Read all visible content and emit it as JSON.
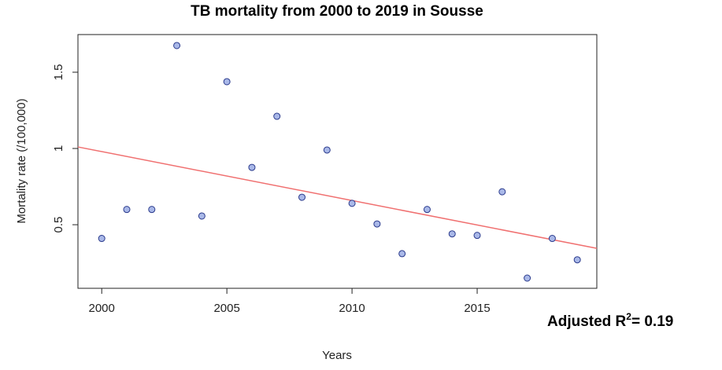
{
  "chart_data": {
    "type": "scatter",
    "title": "TB mortality from 2000 to 2019 in Sousse",
    "x_label": "Years",
    "y_label": "Mortality rate (/100,000)",
    "x": [
      2000,
      2001,
      2002,
      2003,
      2004,
      2005,
      2006,
      2007,
      2008,
      2009,
      2010,
      2011,
      2012,
      2013,
      2014,
      2015,
      2016,
      2017,
      2018,
      2019
    ],
    "series": [
      {
        "name": "Mortality rate",
        "color": "#a9b8e8",
        "edge_color": "#2a3a8c",
        "values": [
          0.41,
          0.6,
          0.6,
          1.675,
          0.557,
          1.438,
          0.876,
          1.211,
          0.68,
          0.99,
          0.64,
          0.505,
          0.31,
          0.6,
          0.44,
          0.43,
          0.716,
          0.15,
          0.41,
          0.27
        ]
      }
    ],
    "regression": {
      "color": "#f07070",
      "x": [
        1999.05,
        2019.78
      ],
      "y": [
        1.01,
        0.345
      ]
    },
    "xlim": [
      1999.05,
      2019.78
    ],
    "xticks": [
      2000,
      2005,
      2010,
      2015
    ],
    "ylim": [
      0.083,
      1.747
    ],
    "yticks": [
      0.5,
      1.0,
      1.5
    ],
    "annotation": {
      "text": "Adjusted R",
      "sup": "2",
      "rest": "= 0.19"
    }
  }
}
